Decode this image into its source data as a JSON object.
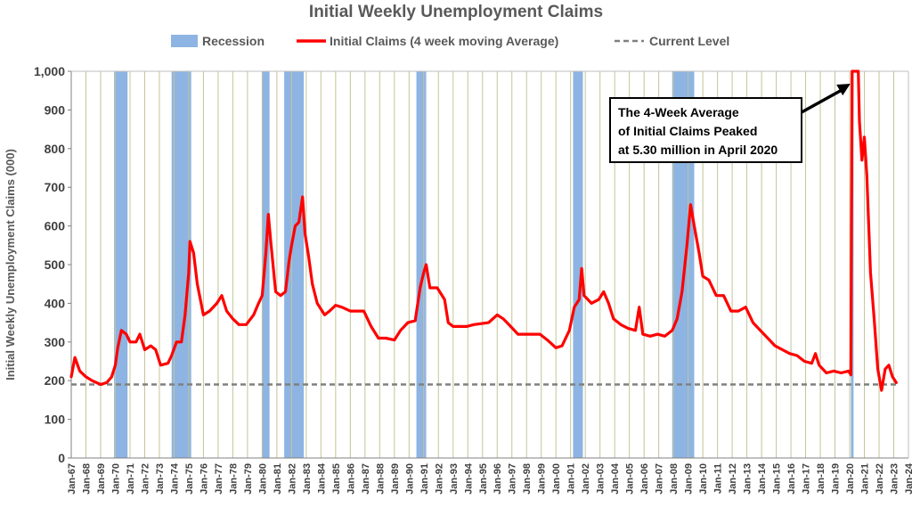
{
  "chart_data": {
    "type": "line",
    "title": "Initial Weekly Unemployment Claims",
    "ylabel": "Initial Weekly Unemployment Claims (000)",
    "xlabel": "",
    "ylim": [
      0,
      1000
    ],
    "xlim": [
      "1967-01",
      "2024-01"
    ],
    "y_ticks": [
      "0",
      "100",
      "200",
      "300",
      "400",
      "500",
      "600",
      "700",
      "800",
      "900",
      "1,000"
    ],
    "x_ticks": [
      "Jan-67",
      "Jan-68",
      "Jan-69",
      "Jan-70",
      "Jan-71",
      "Jan-72",
      "Jan-73",
      "Jan-74",
      "Jan-75",
      "Jan-76",
      "Jan-77",
      "Jan-78",
      "Jan-79",
      "Jan-80",
      "Jan-81",
      "Jan-82",
      "Jan-83",
      "Jan-84",
      "Jan-85",
      "Jan-86",
      "Jan-87",
      "Jan-88",
      "Jan-89",
      "Jan-90",
      "Jan-91",
      "Jan-92",
      "Jan-93",
      "Jan-94",
      "Jan-95",
      "Jan-96",
      "Jan-97",
      "Jan-98",
      "Jan-99",
      "Jan-00",
      "Jan-01",
      "Jan-02",
      "Jan-03",
      "Jan-04",
      "Jan-05",
      "Jan-06",
      "Jan-07",
      "Jan-08",
      "Jan-09",
      "Jan-10",
      "Jan-11",
      "Jan-12",
      "Jan-13",
      "Jan-14",
      "Jan-15",
      "Jan-16",
      "Jan-17",
      "Jan-18",
      "Jan-19",
      "Jan-20",
      "Jan-21",
      "Jan-22",
      "Jan-23",
      "Jan-24"
    ],
    "grid": "vertical",
    "legend_position": "top",
    "legend": [
      {
        "label": "Recession",
        "kind": "band",
        "color": "#8db4e2"
      },
      {
        "label": "Initial Claims (4 week moving Average)",
        "kind": "line",
        "color": "#ff0000"
      },
      {
        "label": "Current Level",
        "kind": "dash",
        "color": "#808080"
      }
    ],
    "recessions": [
      [
        "1969-12",
        "1970-11"
      ],
      [
        "1973-11",
        "1975-03"
      ],
      [
        "1980-01",
        "1980-07"
      ],
      [
        "1981-07",
        "1982-11"
      ],
      [
        "1990-07",
        "1991-03"
      ],
      [
        "2001-03",
        "2001-11"
      ],
      [
        "2007-12",
        "2009-06"
      ],
      [
        "2020-02",
        "2020-04"
      ]
    ],
    "current_level": 190,
    "series": [
      {
        "name": "Initial Claims (4 week moving Average)",
        "color": "#ff0000",
        "points": [
          [
            "1967-01",
            210
          ],
          [
            "1967-04",
            260
          ],
          [
            "1967-08",
            225
          ],
          [
            "1968-01",
            210
          ],
          [
            "1968-06",
            200
          ],
          [
            "1969-01",
            190
          ],
          [
            "1969-06",
            195
          ],
          [
            "1969-10",
            210
          ],
          [
            "1970-01",
            240
          ],
          [
            "1970-03",
            285
          ],
          [
            "1970-06",
            330
          ],
          [
            "1970-10",
            320
          ],
          [
            "1971-01",
            300
          ],
          [
            "1971-06",
            300
          ],
          [
            "1971-09",
            320
          ],
          [
            "1972-01",
            280
          ],
          [
            "1972-06",
            290
          ],
          [
            "1972-10",
            280
          ],
          [
            "1973-02",
            240
          ],
          [
            "1973-08",
            245
          ],
          [
            "1973-11",
            265
          ],
          [
            "1974-03",
            300
          ],
          [
            "1974-07",
            300
          ],
          [
            "1974-10",
            370
          ],
          [
            "1975-01",
            480
          ],
          [
            "1975-02",
            560
          ],
          [
            "1975-05",
            530
          ],
          [
            "1975-08",
            450
          ],
          [
            "1976-01",
            370
          ],
          [
            "1976-06",
            380
          ],
          [
            "1976-12",
            400
          ],
          [
            "1977-04",
            420
          ],
          [
            "1977-08",
            380
          ],
          [
            "1978-01",
            360
          ],
          [
            "1978-06",
            345
          ],
          [
            "1978-12",
            345
          ],
          [
            "1979-06",
            370
          ],
          [
            "1979-10",
            400
          ],
          [
            "1980-01",
            420
          ],
          [
            "1980-04",
            530
          ],
          [
            "1980-06",
            630
          ],
          [
            "1980-08",
            560
          ],
          [
            "1980-12",
            430
          ],
          [
            "1981-04",
            420
          ],
          [
            "1981-08",
            430
          ],
          [
            "1981-11",
            510
          ],
          [
            "1982-01",
            550
          ],
          [
            "1982-04",
            600
          ],
          [
            "1982-07",
            610
          ],
          [
            "1982-10",
            675
          ],
          [
            "1982-12",
            580
          ],
          [
            "1983-03",
            520
          ],
          [
            "1983-06",
            450
          ],
          [
            "1983-10",
            400
          ],
          [
            "1984-04",
            370
          ],
          [
            "1984-08",
            380
          ],
          [
            "1985-01",
            395
          ],
          [
            "1985-06",
            390
          ],
          [
            "1986-01",
            380
          ],
          [
            "1986-06",
            380
          ],
          [
            "1986-12",
            380
          ],
          [
            "1987-06",
            340
          ],
          [
            "1987-12",
            310
          ],
          [
            "1988-06",
            310
          ],
          [
            "1989-01",
            305
          ],
          [
            "1989-06",
            330
          ],
          [
            "1989-12",
            350
          ],
          [
            "1990-06",
            355
          ],
          [
            "1990-10",
            440
          ],
          [
            "1991-01",
            480
          ],
          [
            "1991-03",
            500
          ],
          [
            "1991-06",
            440
          ],
          [
            "1991-12",
            440
          ],
          [
            "1992-06",
            410
          ],
          [
            "1992-09",
            350
          ],
          [
            "1993-01",
            340
          ],
          [
            "1993-12",
            340
          ],
          [
            "1994-06",
            345
          ],
          [
            "1995-06",
            350
          ],
          [
            "1996-01",
            370
          ],
          [
            "1996-06",
            360
          ],
          [
            "1996-12",
            340
          ],
          [
            "1997-06",
            320
          ],
          [
            "1998-01",
            320
          ],
          [
            "1998-12",
            320
          ],
          [
            "1999-06",
            305
          ],
          [
            "2000-01",
            285
          ],
          [
            "2000-06",
            290
          ],
          [
            "2000-12",
            330
          ],
          [
            "2001-04",
            390
          ],
          [
            "2001-08",
            410
          ],
          [
            "2001-10",
            490
          ],
          [
            "2001-12",
            420
          ],
          [
            "2002-06",
            400
          ],
          [
            "2002-12",
            410
          ],
          [
            "2003-04",
            430
          ],
          [
            "2003-08",
            400
          ],
          [
            "2003-12",
            360
          ],
          [
            "2004-06",
            345
          ],
          [
            "2004-12",
            335
          ],
          [
            "2005-06",
            330
          ],
          [
            "2005-09",
            390
          ],
          [
            "2005-12",
            320
          ],
          [
            "2006-06",
            315
          ],
          [
            "2006-12",
            320
          ],
          [
            "2007-06",
            315
          ],
          [
            "2007-12",
            330
          ],
          [
            "2008-04",
            360
          ],
          [
            "2008-08",
            430
          ],
          [
            "2008-12",
            550
          ],
          [
            "2009-03",
            655
          ],
          [
            "2009-06",
            600
          ],
          [
            "2009-10",
            530
          ],
          [
            "2010-01",
            470
          ],
          [
            "2010-06",
            460
          ],
          [
            "2010-12",
            420
          ],
          [
            "2011-06",
            420
          ],
          [
            "2011-12",
            380
          ],
          [
            "2012-06",
            380
          ],
          [
            "2012-12",
            390
          ],
          [
            "2013-06",
            350
          ],
          [
            "2013-12",
            330
          ],
          [
            "2014-06",
            310
          ],
          [
            "2014-12",
            290
          ],
          [
            "2015-06",
            280
          ],
          [
            "2015-12",
            270
          ],
          [
            "2016-06",
            265
          ],
          [
            "2016-12",
            250
          ],
          [
            "2017-06",
            245
          ],
          [
            "2017-09",
            270
          ],
          [
            "2017-12",
            240
          ],
          [
            "2018-06",
            220
          ],
          [
            "2018-12",
            225
          ],
          [
            "2019-06",
            220
          ],
          [
            "2019-12",
            225
          ],
          [
            "2020-02",
            215
          ],
          [
            "2020-03",
            1000
          ],
          [
            "2020-04",
            1000
          ],
          [
            "2020-06",
            1000
          ],
          [
            "2020-08",
            1000
          ],
          [
            "2020-09",
            870
          ],
          [
            "2020-11",
            770
          ],
          [
            "2021-01",
            830
          ],
          [
            "2021-03",
            730
          ],
          [
            "2021-06",
            480
          ],
          [
            "2021-09",
            360
          ],
          [
            "2021-12",
            230
          ],
          [
            "2022-03",
            175
          ],
          [
            "2022-06",
            230
          ],
          [
            "2022-09",
            240
          ],
          [
            "2022-12",
            210
          ],
          [
            "2023-03",
            195
          ]
        ]
      }
    ],
    "annotation": {
      "lines": [
        "The 4-Week Average",
        "of Initial Claims Peaked",
        "at 5.30 million in April 2020"
      ],
      "arrow_to": [
        "2020-03",
        1000
      ]
    }
  }
}
